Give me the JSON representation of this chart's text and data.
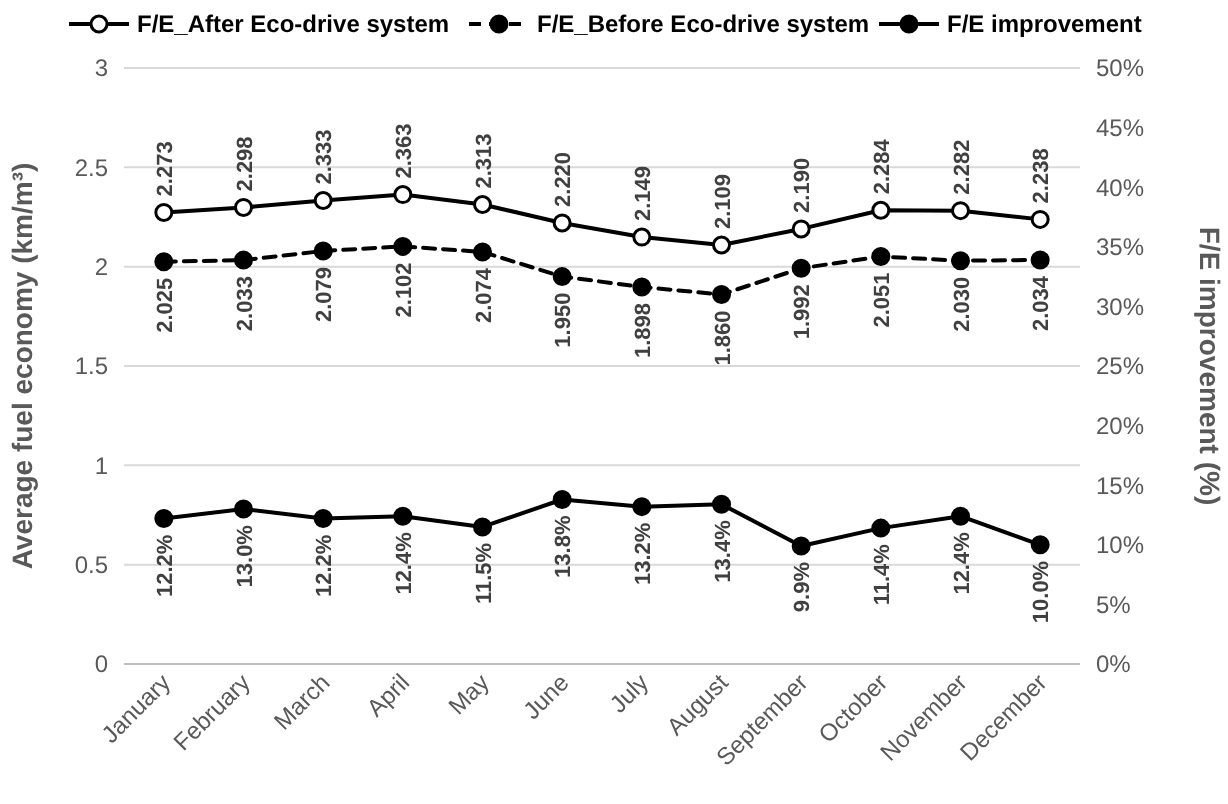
{
  "chart_data": {
    "type": "line",
    "categories": [
      "January",
      "February",
      "March",
      "April",
      "May",
      "June",
      "July",
      "August",
      "September",
      "October",
      "November",
      "December"
    ],
    "ylabel": "Average fuel economy (km/m³)",
    "y2label": "F/E improvement (%)",
    "ylim": [
      0,
      3
    ],
    "yticks": [
      0,
      0.5,
      1,
      1.5,
      2,
      2.5,
      3
    ],
    "y2lim": [
      0,
      50
    ],
    "y2ticks": [
      {
        "value": 0,
        "label": "0%"
      },
      {
        "value": 5,
        "label": "5%"
      },
      {
        "value": 10,
        "label": "10%"
      },
      {
        "value": 15,
        "label": "15%"
      },
      {
        "value": 20,
        "label": "20%"
      },
      {
        "value": 25,
        "label": "25%"
      },
      {
        "value": 30,
        "label": "30%"
      },
      {
        "value": 35,
        "label": "35%"
      },
      {
        "value": 40,
        "label": "40%"
      },
      {
        "value": 45,
        "label": "45%"
      },
      {
        "value": 50,
        "label": "50%"
      }
    ],
    "grid": "y",
    "legend": "top",
    "marker": "circle",
    "series": [
      {
        "name": "F/E_After Eco-drive system",
        "color": "#000000",
        "line_style": "solid",
        "values": [
          2.273,
          2.298,
          2.333,
          2.363,
          2.313,
          2.22,
          2.149,
          2.109,
          2.19,
          2.284,
          2.282,
          2.238
        ],
        "value_labels": [
          "2.273",
          "2.298",
          "2.333",
          "2.363",
          "2.313",
          "2.220",
          "2.149",
          "2.109",
          "2.190",
          "2.284",
          "2.282",
          "2.238"
        ]
      },
      {
        "name": "F/E_Before Eco-drive system",
        "color": "#000000",
        "line_style": "dashed",
        "values": [
          2.025,
          2.033,
          2.079,
          2.102,
          2.074,
          1.95,
          1.898,
          1.86,
          1.992,
          2.051,
          2.03,
          2.034
        ],
        "value_labels": [
          "2.025",
          "2.033",
          "2.079",
          "2.102",
          "2.074",
          "1.950",
          "1.898",
          "1.860",
          "1.992",
          "2.051",
          "2.030",
          "2.034"
        ]
      },
      {
        "name": "F/E improvement",
        "color": "#000000",
        "line_style": "solid",
        "axis": "y2",
        "values": [
          12.2,
          13.0,
          12.2,
          12.4,
          11.5,
          13.8,
          13.2,
          13.4,
          9.9,
          11.4,
          12.4,
          10.0
        ],
        "value_labels": [
          "12.2%",
          "13.0%",
          "12.2%",
          "12.4%",
          "11.5%",
          "13.8%",
          "13.2%",
          "13.4%",
          "9.9%",
          "11.4%",
          "12.4%",
          "10.0%"
        ]
      }
    ]
  }
}
